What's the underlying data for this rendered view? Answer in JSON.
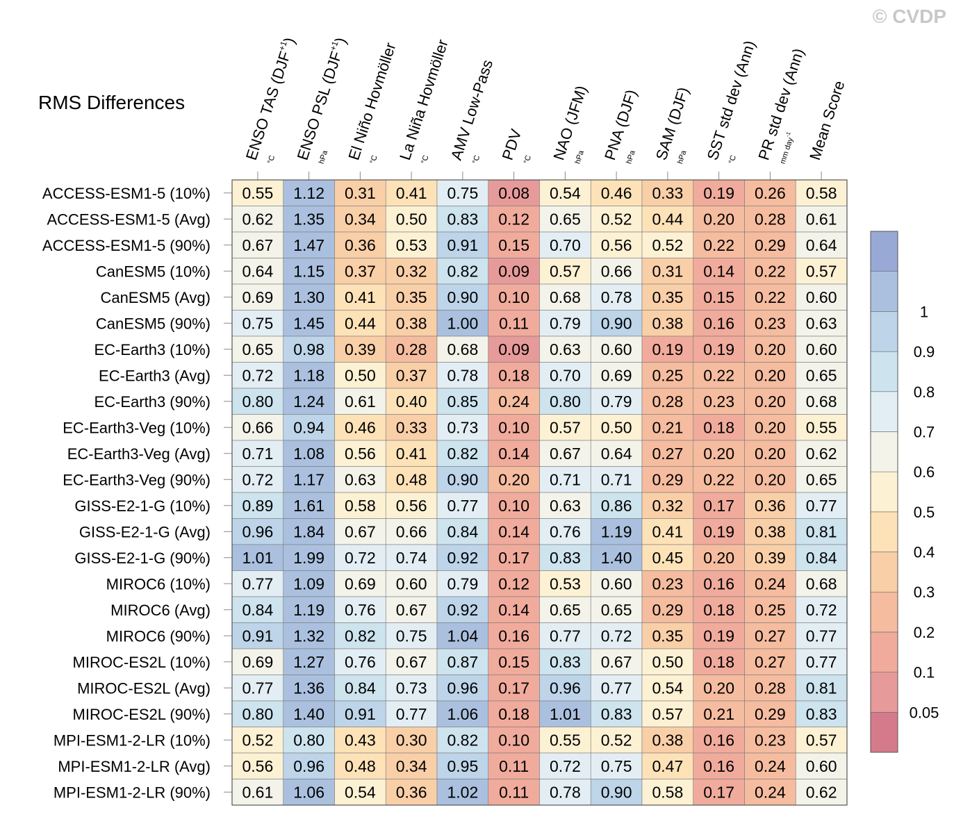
{
  "chart_data": {
    "type": "heatmap",
    "title": "RMS Differences",
    "watermark": "© CVDP",
    "columns": [
      {
        "label": "ENSO TAS (DJF",
        "sup": "+1",
        "close": ")",
        "unit": "°C"
      },
      {
        "label": "ENSO PSL (DJF",
        "sup": "+1",
        "close": ")",
        "unit": "hPa"
      },
      {
        "label": "El Niño Hovmöller",
        "sup": "",
        "close": "",
        "unit": "°C"
      },
      {
        "label": "La Niña Hovmöller",
        "sup": "",
        "close": "",
        "unit": "°C"
      },
      {
        "label": "AMV Low-Pass",
        "sup": "",
        "close": "",
        "unit": "°C"
      },
      {
        "label": "PDV",
        "sup": "",
        "close": "",
        "unit": "°C"
      },
      {
        "label": "NAO (JFM)",
        "sup": "",
        "close": "",
        "unit": "hPa"
      },
      {
        "label": "PNA (DJF)",
        "sup": "",
        "close": "",
        "unit": "hPa"
      },
      {
        "label": "SAM (DJF)",
        "sup": "",
        "close": "",
        "unit": "hPa"
      },
      {
        "label": "SST std dev (Ann)",
        "sup": "",
        "close": "",
        "unit": "°C"
      },
      {
        "label": "PR std dev (Ann)",
        "sup": "",
        "close": "",
        "unit": "mm day",
        "unit_sup": "-1"
      },
      {
        "label": "Mean Score",
        "sup": "",
        "close": "",
        "unit": ""
      }
    ],
    "rows": [
      "ACCESS-ESM1-5 (10%)",
      "ACCESS-ESM1-5 (Avg)",
      "ACCESS-ESM1-5 (90%)",
      "CanESM5 (10%)",
      "CanESM5 (Avg)",
      "CanESM5 (90%)",
      "EC-Earth3 (10%)",
      "EC-Earth3 (Avg)",
      "EC-Earth3 (90%)",
      "EC-Earth3-Veg (10%)",
      "EC-Earth3-Veg (Avg)",
      "EC-Earth3-Veg (90%)",
      "GISS-E2-1-G (10%)",
      "GISS-E2-1-G (Avg)",
      "GISS-E2-1-G (90%)",
      "MIROC6 (10%)",
      "MIROC6 (Avg)",
      "MIROC6 (90%)",
      "MIROC-ES2L (10%)",
      "MIROC-ES2L (Avg)",
      "MIROC-ES2L (90%)",
      "MPI-ESM1-2-LR (10%)",
      "MPI-ESM1-2-LR (Avg)",
      "MPI-ESM1-2-LR (90%)"
    ],
    "values": [
      [
        "0.55",
        "1.12",
        "0.31",
        "0.41",
        "0.75",
        "0.08",
        "0.54",
        "0.46",
        "0.33",
        "0.19",
        "0.26",
        "0.58"
      ],
      [
        "0.62",
        "1.35",
        "0.34",
        "0.50",
        "0.83",
        "0.12",
        "0.65",
        "0.52",
        "0.44",
        "0.20",
        "0.28",
        "0.61"
      ],
      [
        "0.67",
        "1.47",
        "0.36",
        "0.53",
        "0.91",
        "0.15",
        "0.70",
        "0.56",
        "0.52",
        "0.22",
        "0.29",
        "0.64"
      ],
      [
        "0.64",
        "1.15",
        "0.37",
        "0.32",
        "0.82",
        "0.09",
        "0.57",
        "0.66",
        "0.31",
        "0.14",
        "0.22",
        "0.57"
      ],
      [
        "0.69",
        "1.30",
        "0.41",
        "0.35",
        "0.90",
        "0.10",
        "0.68",
        "0.78",
        "0.35",
        "0.15",
        "0.22",
        "0.60"
      ],
      [
        "0.75",
        "1.45",
        "0.44",
        "0.38",
        "1.00",
        "0.11",
        "0.79",
        "0.90",
        "0.38",
        "0.16",
        "0.23",
        "0.63"
      ],
      [
        "0.65",
        "0.98",
        "0.39",
        "0.28",
        "0.68",
        "0.09",
        "0.63",
        "0.60",
        "0.19",
        "0.19",
        "0.20",
        "0.60"
      ],
      [
        "0.72",
        "1.18",
        "0.50",
        "0.37",
        "0.78",
        "0.18",
        "0.70",
        "0.69",
        "0.25",
        "0.22",
        "0.20",
        "0.65"
      ],
      [
        "0.80",
        "1.24",
        "0.61",
        "0.40",
        "0.85",
        "0.24",
        "0.80",
        "0.79",
        "0.28",
        "0.23",
        "0.20",
        "0.68"
      ],
      [
        "0.66",
        "0.94",
        "0.46",
        "0.33",
        "0.73",
        "0.10",
        "0.57",
        "0.50",
        "0.21",
        "0.18",
        "0.20",
        "0.55"
      ],
      [
        "0.71",
        "1.08",
        "0.56",
        "0.41",
        "0.82",
        "0.14",
        "0.67",
        "0.64",
        "0.27",
        "0.20",
        "0.20",
        "0.62"
      ],
      [
        "0.72",
        "1.17",
        "0.63",
        "0.48",
        "0.90",
        "0.20",
        "0.71",
        "0.71",
        "0.29",
        "0.22",
        "0.20",
        "0.65"
      ],
      [
        "0.89",
        "1.61",
        "0.58",
        "0.56",
        "0.77",
        "0.10",
        "0.63",
        "0.86",
        "0.32",
        "0.17",
        "0.36",
        "0.77"
      ],
      [
        "0.96",
        "1.84",
        "0.67",
        "0.66",
        "0.84",
        "0.14",
        "0.76",
        "1.19",
        "0.41",
        "0.19",
        "0.38",
        "0.81"
      ],
      [
        "1.01",
        "1.99",
        "0.72",
        "0.74",
        "0.92",
        "0.17",
        "0.83",
        "1.40",
        "0.45",
        "0.20",
        "0.39",
        "0.84"
      ],
      [
        "0.77",
        "1.09",
        "0.69",
        "0.60",
        "0.79",
        "0.12",
        "0.53",
        "0.60",
        "0.23",
        "0.16",
        "0.24",
        "0.68"
      ],
      [
        "0.84",
        "1.19",
        "0.76",
        "0.67",
        "0.92",
        "0.14",
        "0.65",
        "0.65",
        "0.29",
        "0.18",
        "0.25",
        "0.72"
      ],
      [
        "0.91",
        "1.32",
        "0.82",
        "0.75",
        "1.04",
        "0.16",
        "0.77",
        "0.72",
        "0.35",
        "0.19",
        "0.27",
        "0.77"
      ],
      [
        "0.69",
        "1.27",
        "0.76",
        "0.67",
        "0.87",
        "0.15",
        "0.83",
        "0.67",
        "0.50",
        "0.18",
        "0.27",
        "0.77"
      ],
      [
        "0.77",
        "1.36",
        "0.84",
        "0.73",
        "0.96",
        "0.17",
        "0.96",
        "0.77",
        "0.54",
        "0.20",
        "0.28",
        "0.81"
      ],
      [
        "0.80",
        "1.40",
        "0.91",
        "0.77",
        "1.06",
        "0.18",
        "1.01",
        "0.83",
        "0.57",
        "0.21",
        "0.29",
        "0.83"
      ],
      [
        "0.52",
        "0.80",
        "0.43",
        "0.30",
        "0.82",
        "0.10",
        "0.55",
        "0.52",
        "0.38",
        "0.16",
        "0.23",
        "0.57"
      ],
      [
        "0.56",
        "0.96",
        "0.48",
        "0.34",
        "0.95",
        "0.11",
        "0.72",
        "0.75",
        "0.47",
        "0.16",
        "0.24",
        "0.60"
      ],
      [
        "0.61",
        "1.06",
        "0.54",
        "0.36",
        "1.02",
        "0.11",
        "0.78",
        "0.90",
        "0.58",
        "0.17",
        "0.24",
        "0.62"
      ]
    ],
    "colorbar": {
      "levels": [
        0.05,
        0.1,
        0.2,
        0.3,
        0.4,
        0.5,
        0.6,
        0.7,
        0.8,
        0.9,
        1
      ],
      "labels": [
        "0.05",
        "0.1",
        "0.2",
        "0.3",
        "0.4",
        "0.5",
        "0.6",
        "0.7",
        "0.8",
        "0.9",
        "1"
      ],
      "colors": [
        "#d57a8a",
        "#e69a9a",
        "#f0ab9c",
        "#f5bc9f",
        "#f9cfa8",
        "#fde2b8",
        "#fdf1d4",
        "#f3f3ea",
        "#e3eef4",
        "#cde3ee",
        "#bdd4e9",
        "#aac0de",
        "#98a9d5"
      ]
    }
  }
}
